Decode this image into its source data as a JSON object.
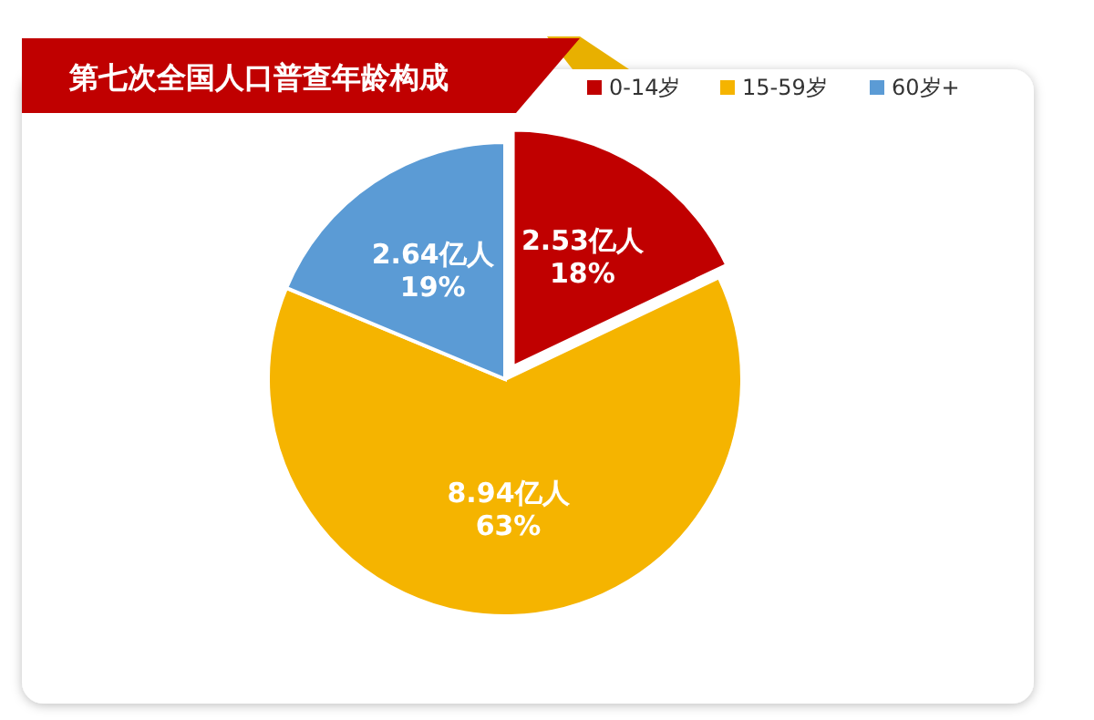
{
  "chart_data": {
    "type": "pie",
    "title": "第七次全国人口普查年龄构成",
    "categories": [
      "0-14岁",
      "15-59岁",
      "60岁+"
    ],
    "values": [
      2.53,
      8.94,
      2.64
    ],
    "colors": [
      "#c00000",
      "#f5b400",
      "#5b9bd5"
    ],
    "value_labels": [
      "2.53亿人\n18%",
      "8.94亿人\n63%",
      "2.64亿人\n19%"
    ],
    "legend": "top right"
  }
}
